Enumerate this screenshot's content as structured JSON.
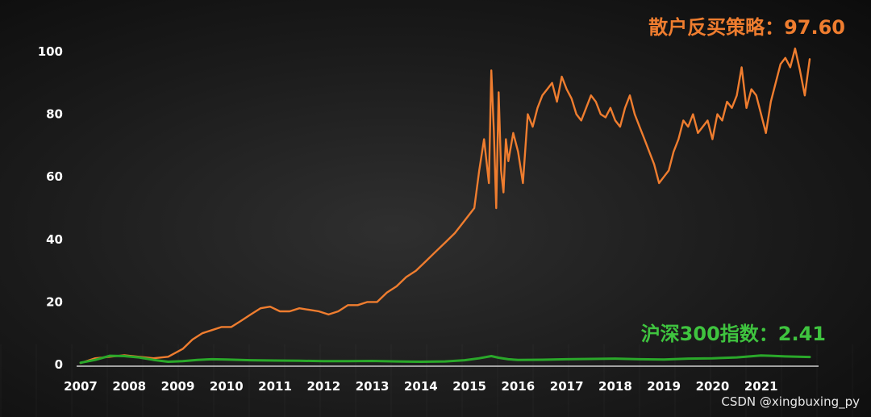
{
  "chart_data": {
    "type": "line",
    "title": "",
    "xlabel": "",
    "ylabel": "",
    "xlim": [
      2007,
      2022.1
    ],
    "ylim": [
      0,
      103
    ],
    "x_ticks": [
      "2007",
      "2008",
      "2009",
      "2010",
      "2011",
      "2012",
      "2013",
      "2014",
      "2015",
      "2016",
      "2017",
      "2018",
      "2019",
      "2020",
      "2021"
    ],
    "y_ticks": [
      "0",
      "20",
      "40",
      "60",
      "80",
      "100"
    ],
    "grid": false,
    "legend": "inline-labels",
    "series": [
      {
        "name": "散户反买策略：97.60",
        "color": "#ef7d2f",
        "x": [
          2007.0,
          2007.3,
          2007.6,
          2007.9,
          2008.2,
          2008.5,
          2008.8,
          2009.1,
          2009.3,
          2009.5,
          2009.7,
          2009.9,
          2010.1,
          2010.3,
          2010.5,
          2010.7,
          2010.9,
          2011.1,
          2011.3,
          2011.5,
          2011.7,
          2011.9,
          2012.1,
          2012.3,
          2012.5,
          2012.7,
          2012.9,
          2013.1,
          2013.3,
          2013.5,
          2013.7,
          2013.9,
          2014.1,
          2014.3,
          2014.5,
          2014.7,
          2014.9,
          2015.0,
          2015.1,
          2015.2,
          2015.3,
          2015.4,
          2015.45,
          2015.5,
          2015.55,
          2015.6,
          2015.65,
          2015.7,
          2015.75,
          2015.8,
          2015.9,
          2016.0,
          2016.1,
          2016.2,
          2016.3,
          2016.4,
          2016.5,
          2016.6,
          2016.7,
          2016.8,
          2016.9,
          2017.0,
          2017.1,
          2017.2,
          2017.3,
          2017.4,
          2017.5,
          2017.6,
          2017.7,
          2017.8,
          2017.9,
          2018.0,
          2018.1,
          2018.2,
          2018.3,
          2018.4,
          2018.5,
          2018.6,
          2018.7,
          2018.8,
          2018.9,
          2019.0,
          2019.1,
          2019.2,
          2019.3,
          2019.4,
          2019.5,
          2019.6,
          2019.7,
          2019.8,
          2019.9,
          2020.0,
          2020.1,
          2020.2,
          2020.3,
          2020.4,
          2020.5,
          2020.6,
          2020.7,
          2020.8,
          2020.9,
          2021.0,
          2021.1,
          2021.2,
          2021.3,
          2021.4,
          2021.5,
          2021.6,
          2021.7,
          2021.8,
          2021.9,
          2022.0
        ],
        "values": [
          0.5,
          2,
          2.5,
          3,
          2.5,
          2,
          2.5,
          5,
          8,
          10,
          11,
          12,
          12,
          14,
          16,
          18,
          18.5,
          17,
          17,
          18,
          17.5,
          17,
          16,
          17,
          19,
          19,
          20,
          20,
          23,
          25,
          28,
          30,
          33,
          36,
          39,
          42,
          46,
          48,
          50,
          62,
          72,
          58,
          94,
          75,
          50,
          87,
          62,
          55,
          72,
          65,
          74,
          68,
          58,
          80,
          76,
          82,
          86,
          88,
          90,
          84,
          92,
          88,
          85,
          80,
          78,
          82,
          86,
          84,
          80,
          79,
          82,
          78,
          76,
          82,
          86,
          80,
          76,
          72,
          68,
          64,
          58,
          60,
          62,
          68,
          72,
          78,
          76,
          80,
          74,
          76,
          78,
          72,
          80,
          78,
          84,
          82,
          86,
          95,
          82,
          88,
          86,
          80,
          74,
          84,
          90,
          96,
          98,
          95,
          101,
          94,
          86,
          97.6
        ]
      },
      {
        "name": "沪深300指数：2.41",
        "color": "#2aa82a",
        "x": [
          2007.0,
          2007.3,
          2007.6,
          2007.9,
          2008.2,
          2008.5,
          2008.8,
          2009.1,
          2009.4,
          2009.7,
          2010.0,
          2010.5,
          2011.0,
          2011.5,
          2012.0,
          2012.5,
          2013.0,
          2013.5,
          2014.0,
          2014.5,
          2014.9,
          2015.2,
          2015.45,
          2015.6,
          2015.8,
          2016.0,
          2016.5,
          2017.0,
          2017.5,
          2018.0,
          2018.5,
          2019.0,
          2019.5,
          2020.0,
          2020.5,
          2021.0,
          2021.2,
          2021.5,
          2022.0
        ],
        "values": [
          0.6,
          1.5,
          2.8,
          2.7,
          2.3,
          1.5,
          0.9,
          1.1,
          1.5,
          1.7,
          1.6,
          1.4,
          1.3,
          1.2,
          1.1,
          1.1,
          1.15,
          1.0,
          0.9,
          1.0,
          1.4,
          2.0,
          2.7,
          2.2,
          1.7,
          1.5,
          1.55,
          1.7,
          1.8,
          1.9,
          1.7,
          1.6,
          1.9,
          2.0,
          2.3,
          2.9,
          2.8,
          2.6,
          2.41
        ]
      }
    ]
  },
  "watermark": "CSDN @xingbuxing_py"
}
